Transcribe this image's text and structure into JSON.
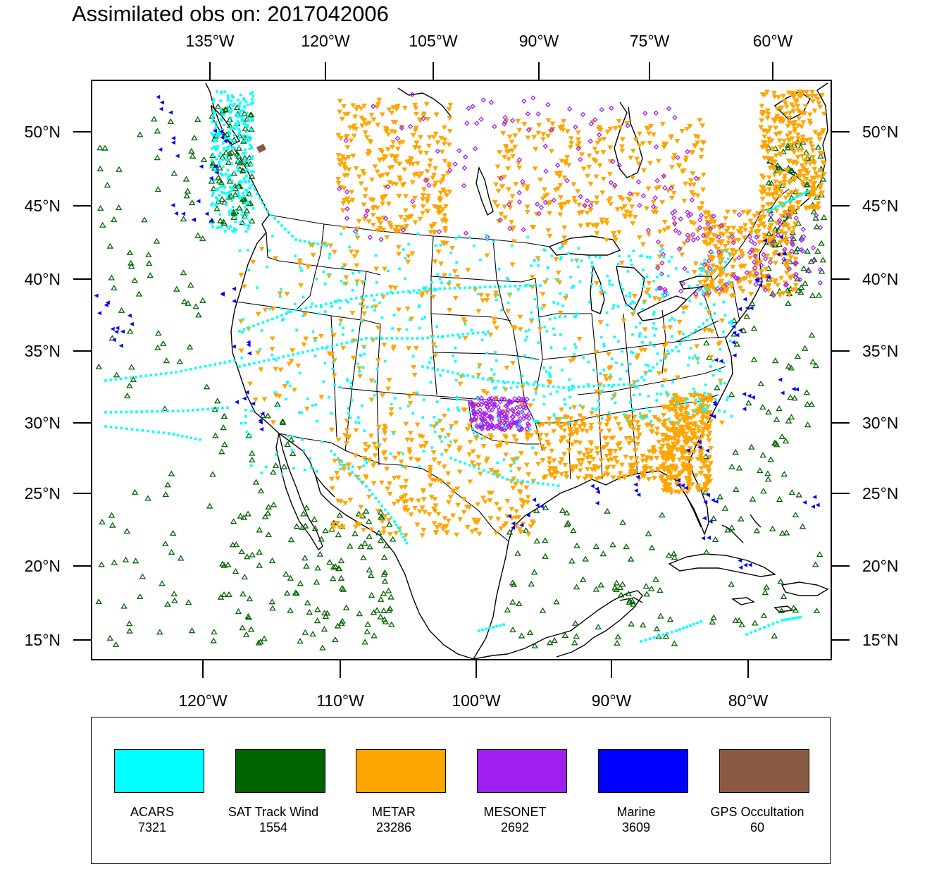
{
  "title": "Assimilated obs on: 2017042006",
  "top_lon_labels": [
    "135°W",
    "120°W",
    "105°W",
    "90°W",
    "75°W",
    "60°W"
  ],
  "bottom_lon_labels": [
    "120°W",
    "110°W",
    "100°W",
    "90°W",
    "80°W"
  ],
  "lat_labels": [
    "50°N",
    "45°N",
    "40°N",
    "35°N",
    "30°N",
    "25°N",
    "20°N",
    "15°N"
  ],
  "legend": [
    {
      "name": "ACARS",
      "count": "7321",
      "color": "#00ffff"
    },
    {
      "name": "SAT Track Wind",
      "count": "1554",
      "color": "#006400"
    },
    {
      "name": "METAR",
      "count": "23286",
      "color": "#ffa500"
    },
    {
      "name": "MESONET",
      "count": "2692",
      "color": "#a020f0"
    },
    {
      "name": "Marine",
      "count": "3609",
      "color": "#0000ff"
    },
    {
      "name": "GPS Occultation",
      "count": "60",
      "color": "#8b5a44"
    }
  ]
}
